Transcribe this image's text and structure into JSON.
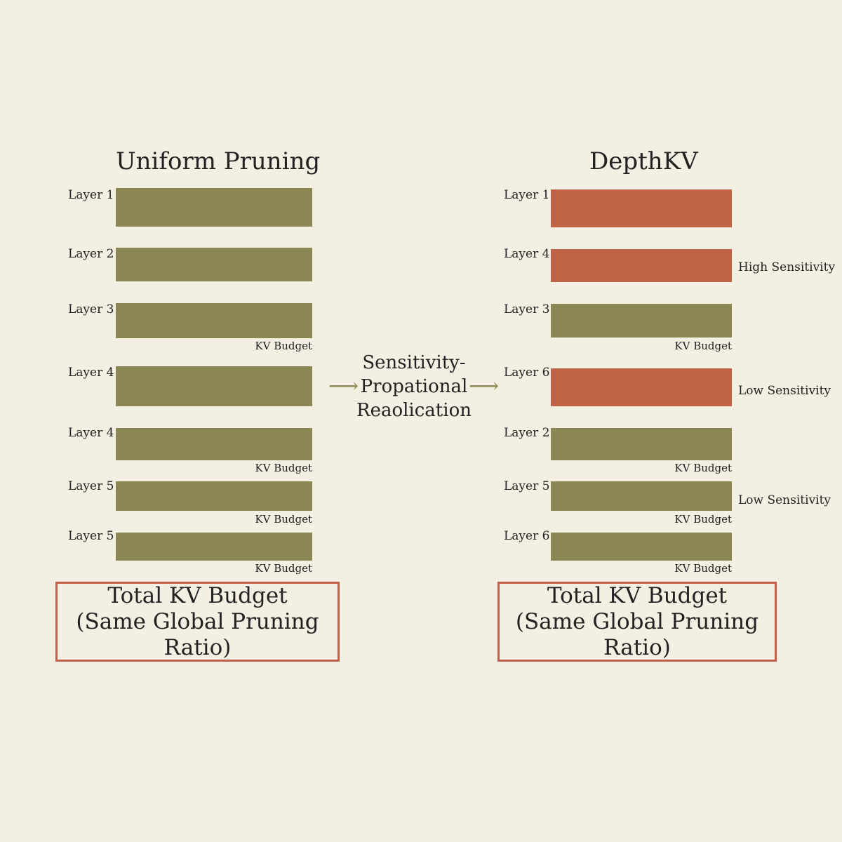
{
  "left": {
    "title": "Uniform Pruning",
    "layers": [
      {
        "label": "Layer 1",
        "kv": ""
      },
      {
        "label": "Layer 2",
        "kv": ""
      },
      {
        "label": "Layer 3",
        "kv": "KV Budget"
      },
      {
        "label": "Layer 4",
        "kv": ""
      },
      {
        "label": "Layer 4",
        "kv": "KV Budget"
      },
      {
        "label": "Layer 5",
        "kv": "KV Budget"
      },
      {
        "label": "Layer 5",
        "kv": "KV Budget"
      }
    ],
    "total": {
      "line1": "Total KV Budget",
      "line2": "(Same Global Pruning Ratio)"
    }
  },
  "center": {
    "line1": "Sensitivity-",
    "line2": "Propational",
    "line3": "Reaolication",
    "arrow_left": "⟶",
    "arrow_right": "⟶"
  },
  "right": {
    "title": "DepthKV",
    "layers": [
      {
        "label": "Layer 1",
        "kv": "",
        "side": ""
      },
      {
        "label": "Layer 4",
        "kv": "",
        "side": "High Sensitivity"
      },
      {
        "label": "Layer 3",
        "kv": "KV Budget",
        "side": ""
      },
      {
        "label": "Layer 6",
        "kv": "",
        "side": "Low Sensitivity"
      },
      {
        "label": "Layer 2",
        "kv": "KV Budget",
        "side": ""
      },
      {
        "label": "Layer 5",
        "kv": "KV Budget",
        "side": "Low Sensitivity"
      },
      {
        "label": "Layer 6",
        "kv": "KV Budget",
        "side": ""
      }
    ],
    "total": {
      "line1": "Total KV Budget",
      "line2": "(Same Global Pruning Ratio)"
    }
  },
  "colors": {
    "olive": "#8a8752",
    "rust": "#bf6347",
    "box_border": "#c4604a",
    "background": "#f3efe3"
  }
}
